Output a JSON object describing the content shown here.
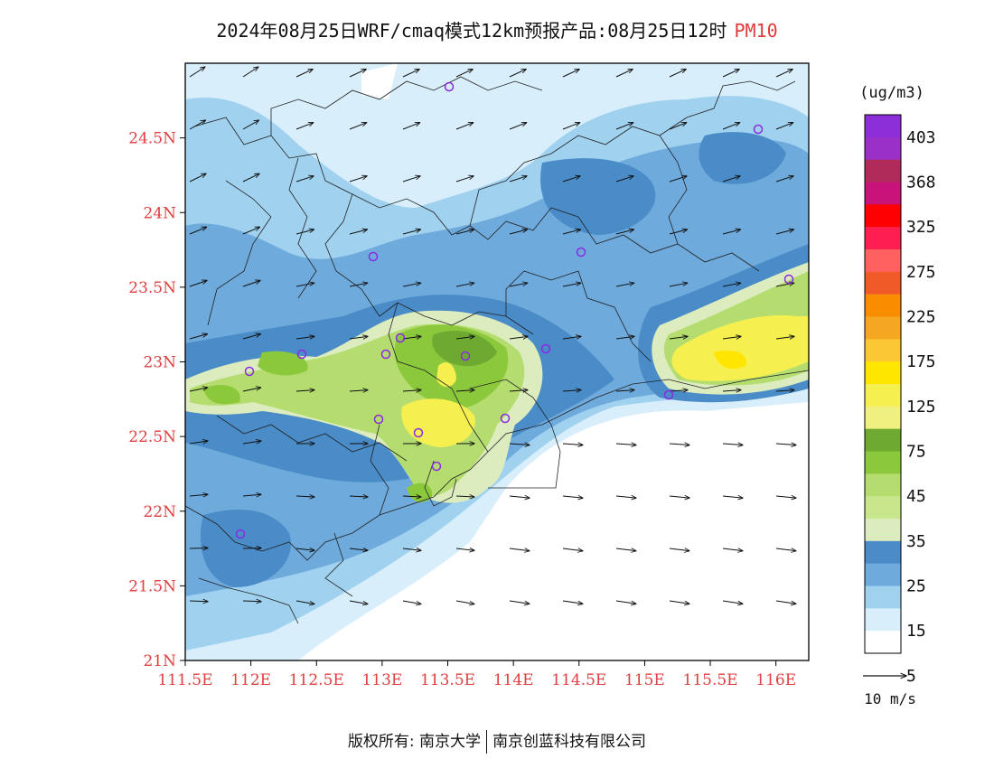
{
  "header": {
    "title": "2024年08月25日WRF/cmaq模式12km预报产品:08月25日12时",
    "pollutant": "PM10"
  },
  "map": {
    "lat_labels": [
      "21N",
      "21.5N",
      "22N",
      "22.5N",
      "23N",
      "23.5N",
      "24N",
      "24.5N"
    ],
    "lon_labels": [
      "111.5E",
      "112E",
      "112.5E",
      "113E",
      "113.5E",
      "114E",
      "114.5E",
      "115E",
      "115.5E",
      "116E"
    ],
    "lat_range": [
      21.0,
      25.0
    ],
    "lon_range": [
      111.5,
      116.25
    ],
    "label_color": "#e04040",
    "station_color": "#8a2be2"
  },
  "legend": {
    "unit": "(ug/m3)",
    "levels": [
      "403",
      "368",
      "325",
      "275",
      "225",
      "175",
      "125",
      "75",
      "45",
      "35",
      "25",
      "15",
      "5"
    ],
    "colors": [
      "#8c2fd8",
      "#9a30c8",
      "#b02a5a",
      "#c8147a",
      "#ff0000",
      "#ff1e50",
      "#ff6060",
      "#f05a28",
      "#fa8c00",
      "#f5a623",
      "#fac832",
      "#ffe600",
      "#f5f050",
      "#f0f080",
      "#6eaa32",
      "#8cc83c",
      "#b4dc6e",
      "#c8e68c",
      "#dcecbe",
      "#4a8cc8",
      "#6eaadc",
      "#a0d2f0",
      "#d8eefa",
      "#ffffff"
    ],
    "wind_scale_label": "10 m/s"
  },
  "footer": {
    "copyright": "版权所有: 南京大学",
    "company": "南京创蓝科技有限公司"
  }
}
